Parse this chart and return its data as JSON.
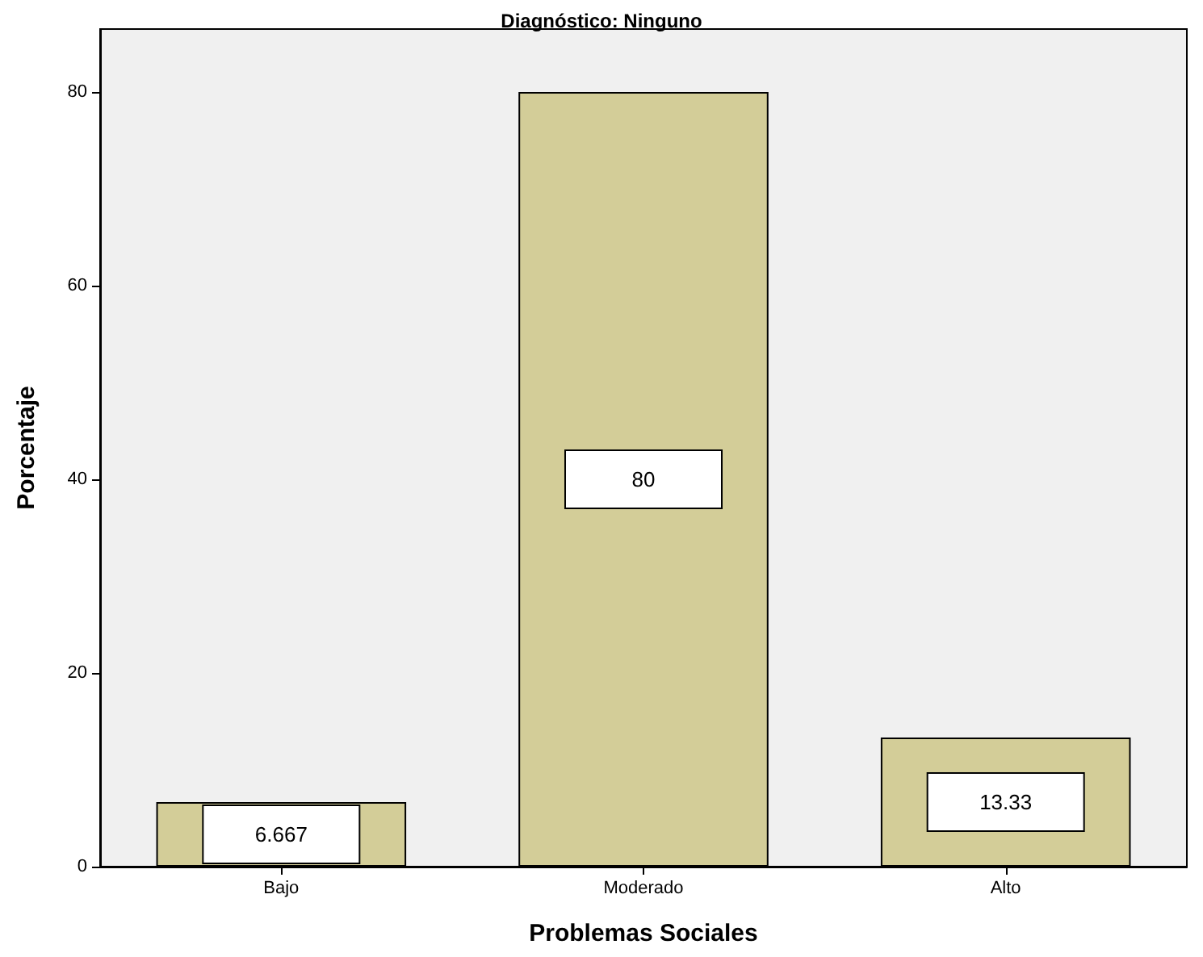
{
  "chart_data": {
    "type": "bar",
    "title": "Diagnóstico: Ninguno",
    "xlabel": "Problemas Sociales",
    "ylabel": "Porcentaje",
    "categories": [
      "Bajo",
      "Moderado",
      "Alto"
    ],
    "values": [
      6.667,
      80,
      13.33
    ],
    "color": "#d3cd98",
    "ylim": [
      0,
      86.5
    ],
    "yticks": [
      0,
      20,
      40,
      60,
      80
    ],
    "data_labels": true,
    "grid": false
  }
}
